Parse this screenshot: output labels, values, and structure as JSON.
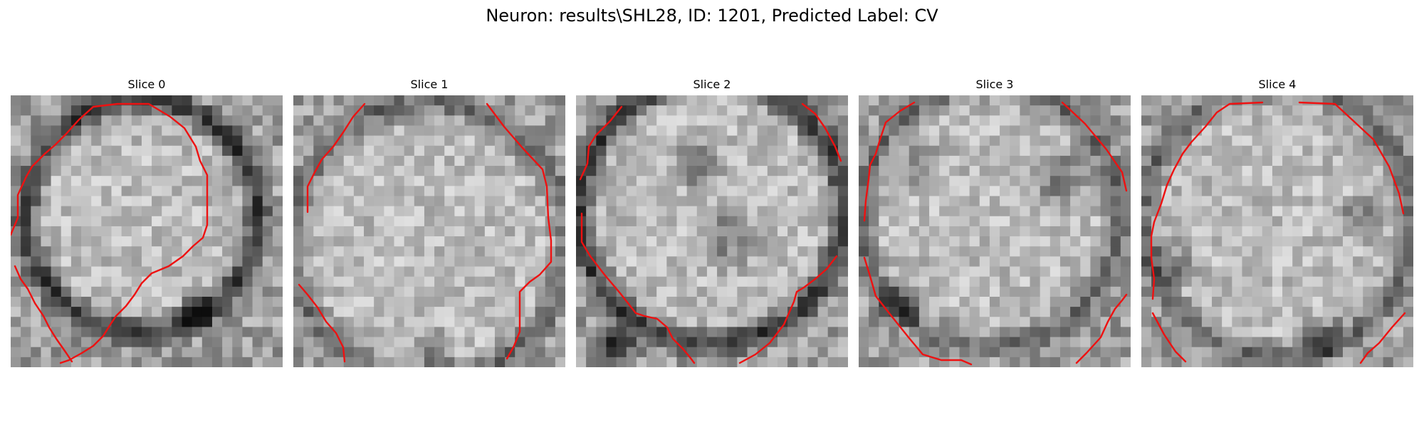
{
  "figure": {
    "title": "Neuron: results\\SHL28, ID: 1201, Predicted Label: CV",
    "contour_color": "#ee1111"
  },
  "panels": [
    {
      "title": "Slice 0"
    },
    {
      "title": "Slice 1"
    },
    {
      "title": "Slice 2"
    },
    {
      "title": "Slice 3"
    },
    {
      "title": "Slice 4"
    }
  ]
}
